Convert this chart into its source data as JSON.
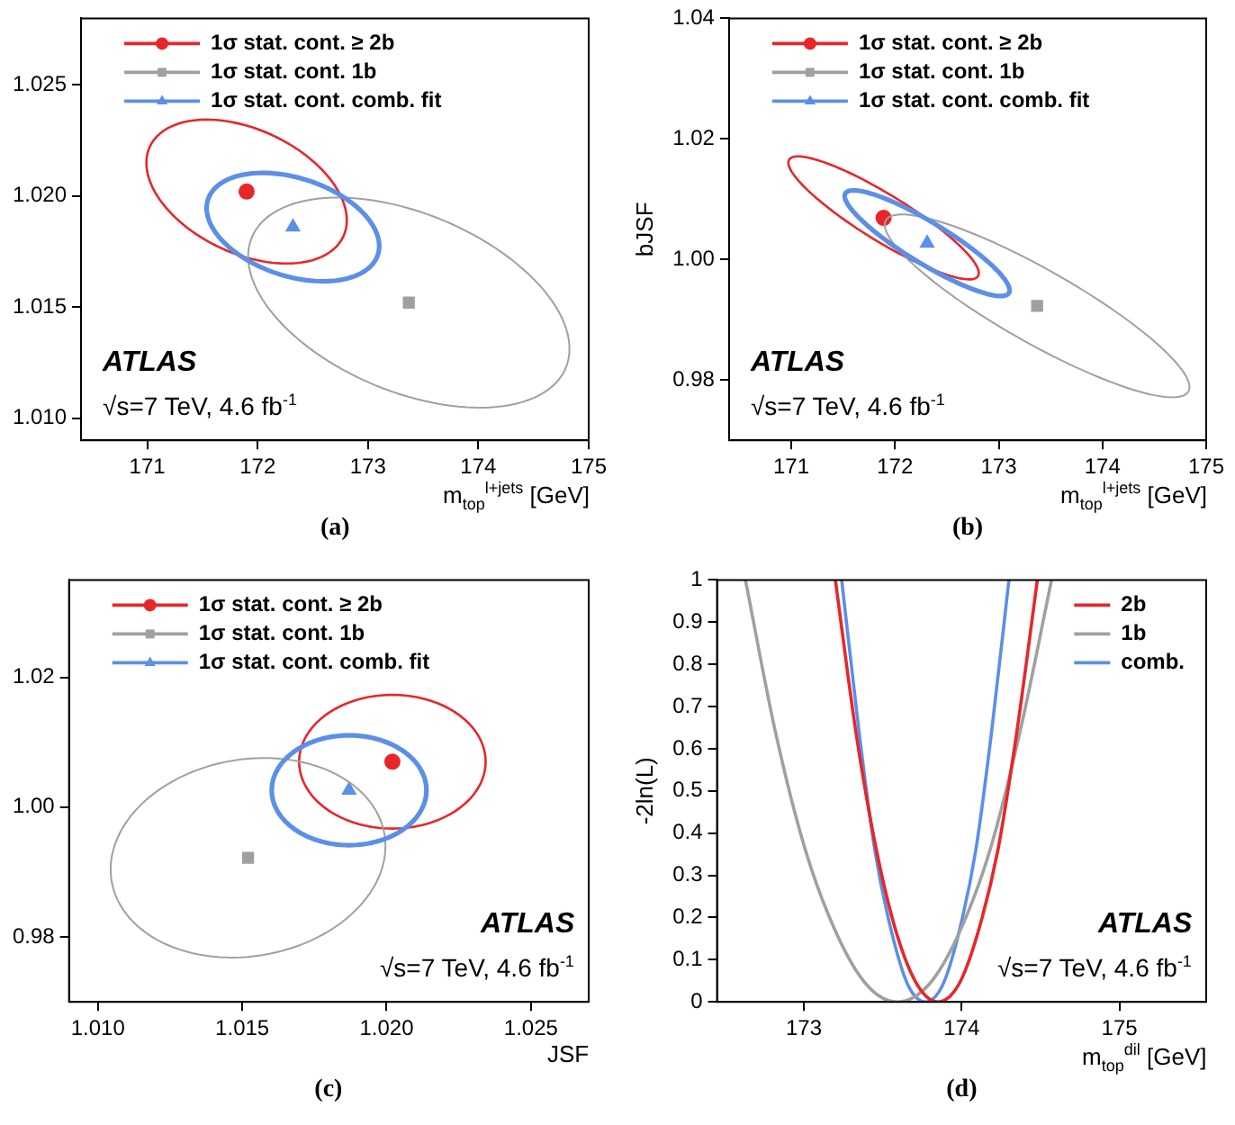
{
  "chart_data": [
    {
      "type": "scatter",
      "title": "(a)",
      "xlabel": "m$_{top}$$^{l+jets}$ [GeV]",
      "annotations": [
        "ATLAS",
        "√s=7 TeV, 4.6 fb$^{-1}$"
      ],
      "xlim": [
        170.4,
        175
      ],
      "xticks": [
        171,
        172,
        173,
        174,
        175
      ],
      "ylim": [
        1.009,
        1.028
      ],
      "yticks": [
        {
          "value": 1.01,
          "label": "1.010"
        },
        1.015,
        {
          "value": 1.02,
          "label": "1.020"
        },
        1.025
      ],
      "legend": "top left",
      "series": [
        {
          "name": "1σ stat. cont. ≥ 2b",
          "color": "#e8262a",
          "marker": "circle",
          "x": [
            171.9
          ],
          "values": [
            1.0202
          ]
        },
        {
          "name": "1σ stat. cont. 1b",
          "color": "#a0a0a0",
          "marker": "square",
          "x": [
            173.37
          ],
          "values": [
            1.0152
          ]
        },
        {
          "name": "1σ stat. cont. comb. fit",
          "color": "#5b8fe8",
          "marker": "triangle",
          "x": [
            172.32
          ],
          "values": [
            1.0186
          ]
        }
      ]
    },
    {
      "type": "scatter",
      "title": "(b)",
      "xlabel": "m$_{top}$$^{l+jets}$ [GeV]",
      "ylabel": "bJSF",
      "annotations": [
        "ATLAS",
        "√s=7 TeV, 4.6 fb$^{-1}$"
      ],
      "xlim": [
        170.4,
        175
      ],
      "xticks": [
        171,
        172,
        173,
        174,
        175
      ],
      "ylim": [
        0.97,
        1.04
      ],
      "yticks": [
        0.98,
        {
          "value": 1.0,
          "label": "1.00"
        },
        1.02,
        1.04
      ],
      "legend": "top left",
      "series": [
        {
          "name": "1σ stat. cont. ≥ 2b",
          "color": "#e8262a",
          "marker": "circle",
          "x": [
            171.89
          ],
          "values": [
            1.0069
          ]
        },
        {
          "name": "1σ stat. cont. 1b",
          "color": "#a0a0a0",
          "marker": "square",
          "x": [
            173.37
          ],
          "values": [
            0.9923
          ]
        },
        {
          "name": "1σ stat. cont. comb. fit",
          "color": "#5b8fe8",
          "marker": "triangle",
          "x": [
            172.31
          ],
          "values": [
            1.0027
          ]
        }
      ]
    },
    {
      "type": "scatter",
      "title": "(c)",
      "xlabel": "JSF",
      "annotations": [
        "ATLAS",
        "√s=7 TeV, 4.6 fb$^{-1}$"
      ],
      "xlim": [
        1.009,
        1.027
      ],
      "xticks": [
        {
          "value": 1.01,
          "label": "1.010"
        },
        1.015,
        {
          "value": 1.02,
          "label": "1.020"
        },
        1.025
      ],
      "ylim": [
        0.97,
        1.035
      ],
      "yticks": [
        0.98,
        {
          "value": 1.0,
          "label": "1.00"
        },
        1.02
      ],
      "legend": "top left",
      "series": [
        {
          "name": "1σ stat. cont. ≥ 2b",
          "color": "#e8262a",
          "marker": "circle",
          "x": [
            1.0202
          ],
          "values": [
            1.007
          ]
        },
        {
          "name": "1σ stat. cont. 1b",
          "color": "#a0a0a0",
          "marker": "square",
          "x": [
            1.0152
          ],
          "values": [
            0.9922
          ]
        },
        {
          "name": "1σ stat. cont. comb. fit",
          "color": "#5b8fe8",
          "marker": "triangle",
          "x": [
            1.0187
          ],
          "values": [
            1.0026
          ]
        }
      ]
    },
    {
      "type": "line",
      "title": "(d)",
      "xlabel": "m$_{top}$$^{dil}$ [GeV]",
      "ylabel": "-2ln(L)",
      "annotations": [
        "ATLAS",
        "√s=7 TeV, 4.6 fb$^{-1}$"
      ],
      "xlim": [
        172.45,
        175.55
      ],
      "xticks": [
        173,
        174,
        175
      ],
      "ylim": [
        0,
        1
      ],
      "yticks": [
        0,
        0.1,
        0.2,
        0.3,
        0.4,
        0.5,
        0.6,
        0.7,
        0.8,
        0.9,
        1
      ],
      "legend": "top right",
      "series": [
        {
          "name": "2b",
          "color": "#e8262a",
          "x": [
            173.2,
            173.33,
            173.46,
            173.59,
            173.72,
            173.85,
            173.98,
            174.1,
            174.23,
            174.35,
            174.48
          ],
          "values": [
            1,
            0.64,
            0.36,
            0.16,
            0.04,
            0,
            0.04,
            0.16,
            0.36,
            0.64,
            1
          ]
        },
        {
          "name": "1b",
          "color": "#a0a0a0",
          "x": [
            172.63,
            172.82,
            173.01,
            173.21,
            173.4,
            173.59,
            173.79,
            173.98,
            174.18,
            174.37,
            174.57
          ],
          "values": [
            1,
            0.64,
            0.36,
            0.16,
            0.04,
            0,
            0.04,
            0.16,
            0.36,
            0.64,
            1
          ]
        },
        {
          "name": "comb.",
          "color": "#5b8fe8",
          "x": [
            173.24,
            173.35,
            173.45,
            173.56,
            173.66,
            173.77,
            173.88,
            173.98,
            174.09,
            174.19,
            174.3
          ],
          "values": [
            1,
            0.64,
            0.36,
            0.16,
            0.04,
            0,
            0.04,
            0.16,
            0.36,
            0.64,
            1
          ]
        }
      ]
    }
  ]
}
